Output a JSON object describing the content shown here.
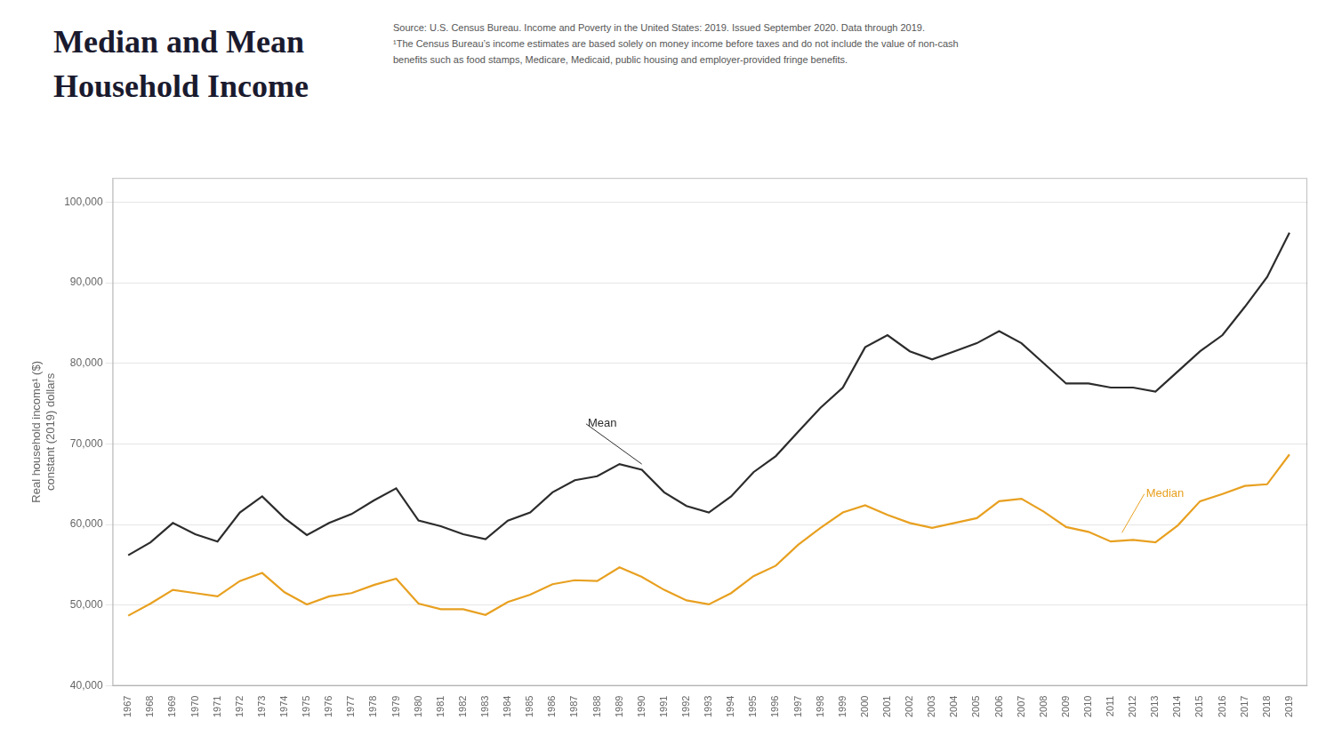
{
  "chart_data": {
    "type": "line",
    "title": [
      "Median and Mean",
      "Household Income"
    ],
    "source": [
      "Source: U.S. Census Bureau. Income and Poverty in the United States: 2019. Issued September 2020. Data through 2019.",
      "¹The Census Bureau’s income estimates are based solely on money income before taxes and do not include the value of non-cash",
      "benefits such as food stamps, Medicare, Medicaid, public housing and employer-provided fringe benefits."
    ],
    "ylabel": "Real household income¹ ($)\nconstant (2019) dollars",
    "x": [
      1967,
      1968,
      1969,
      1970,
      1971,
      1972,
      1973,
      1974,
      1975,
      1976,
      1977,
      1978,
      1979,
      1980,
      1981,
      1982,
      1983,
      1984,
      1985,
      1986,
      1987,
      1988,
      1989,
      1990,
      1991,
      1992,
      1993,
      1994,
      1995,
      1996,
      1997,
      1998,
      1999,
      2000,
      2001,
      2002,
      2003,
      2004,
      2005,
      2006,
      2007,
      2008,
      2009,
      2010,
      2011,
      2012,
      2013,
      2014,
      2015,
      2016,
      2017,
      2018,
      2019
    ],
    "series": [
      {
        "name": "Mean",
        "color": "#2c2c2c",
        "values": [
          56200,
          57800,
          60200,
          58800,
          57900,
          61500,
          63500,
          60800,
          58700,
          60200,
          61300,
          63000,
          64500,
          60500,
          59800,
          58800,
          58200,
          60500,
          61500,
          64000,
          65500,
          66000,
          67500,
          66800,
          64000,
          62300,
          61500,
          63500,
          66500,
          68500,
          71500,
          74500,
          77000,
          82000,
          83500,
          81500,
          80500,
          81500,
          82500,
          84000,
          82500,
          80000,
          77500,
          77500,
          77000,
          77000,
          76500,
          79000,
          81500,
          83500,
          87000,
          90700,
          96200
        ]
      },
      {
        "name": "Median",
        "color": "#e8a020",
        "values": [
          48700,
          50200,
          51900,
          51500,
          51100,
          53000,
          54000,
          51600,
          50100,
          51100,
          51500,
          52500,
          53300,
          50200,
          49500,
          49500,
          48800,
          50400,
          51300,
          52600,
          53100,
          53000,
          54700,
          53500,
          51900,
          50600,
          50100,
          51500,
          53600,
          54900,
          57500,
          59600,
          61500,
          62400,
          61200,
          60200,
          59600,
          60200,
          60800,
          62900,
          63200,
          61600,
          59700,
          59100,
          57900,
          58100,
          57800,
          59900,
          62900,
          63800,
          64800,
          65000,
          68700
        ]
      }
    ],
    "xlim": [
      1966.3,
      2019.8
    ],
    "xticks": [
      1967,
      1968,
      1969,
      1970,
      1971,
      1972,
      1973,
      1974,
      1975,
      1976,
      1977,
      1978,
      1979,
      1980,
      1981,
      1982,
      1983,
      1984,
      1985,
      1986,
      1987,
      1988,
      1989,
      1990,
      1991,
      1992,
      1993,
      1994,
      1995,
      1996,
      1997,
      1998,
      1999,
      2000,
      2001,
      2002,
      2003,
      2004,
      2005,
      2006,
      2007,
      2008,
      2009,
      2010,
      2011,
      2012,
      2013,
      2014,
      2015,
      2016,
      2017,
      2018,
      2019
    ],
    "ylim": [
      40000,
      103000
    ],
    "yticks": [
      {
        "value": 40000,
        "label": "40,000"
      },
      {
        "value": 50000,
        "label": "50,000"
      },
      {
        "value": 60000,
        "label": "60,000"
      },
      {
        "value": 70000,
        "label": "70,000"
      },
      {
        "value": 80000,
        "label": "80,000"
      },
      {
        "value": 90000,
        "label": "90,000"
      },
      {
        "value": 100000,
        "label": "100,000"
      }
    ],
    "grid": "y",
    "annotations": [
      {
        "text": "Mean",
        "xy": [
          1990,
          67500
        ],
        "xytext": [
          1987.5,
          72500
        ],
        "color": "#2c2c2c"
      },
      {
        "text": "Median",
        "xy": [
          2011.5,
          59000
        ],
        "xytext": [
          2012.5,
          63800
        ],
        "color": "#e8a020"
      }
    ]
  }
}
